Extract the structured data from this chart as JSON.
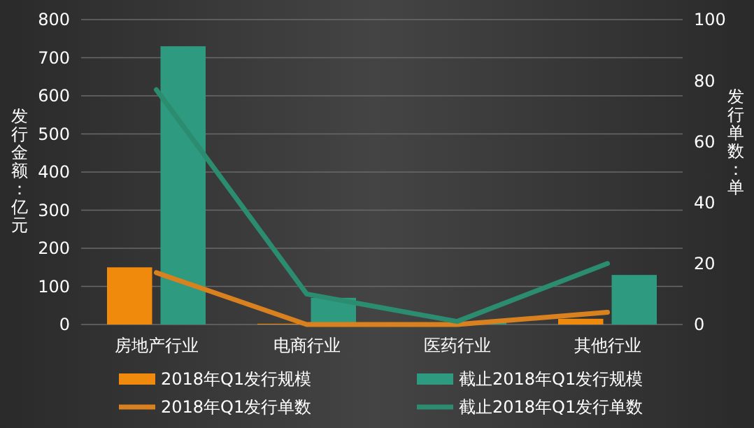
{
  "chart_data": {
    "type": "bar",
    "categories": [
      "房地产行业",
      "电商行业",
      "医药行业",
      "其他行业"
    ],
    "ylabel": "发行金额：亿元",
    "y2label": "发行单数：单",
    "ylim": [
      0,
      800
    ],
    "yticks": [
      0,
      100,
      200,
      300,
      400,
      500,
      600,
      700,
      800
    ],
    "y2lim": [
      0,
      100
    ],
    "y2ticks": [
      0,
      20,
      40,
      60,
      80,
      100
    ],
    "grid": "y",
    "legend": "bottom",
    "series": [
      {
        "name": "2018年Q1发行规模",
        "color": "#f08a0c",
        "values": [
          150,
          2,
          1,
          15
        ]
      },
      {
        "name": "截止2018年Q1发行规模",
        "color": "#2e9a80",
        "values": [
          730,
          70,
          5,
          130
        ]
      },
      {
        "name": "2018年Q1发行单数",
        "type": "line",
        "axis": "y2",
        "color": "#d9811f",
        "values": [
          17,
          0,
          0,
          4
        ]
      },
      {
        "name": "截止2018年Q1发行单数",
        "type": "line",
        "axis": "y2",
        "color": "#2b8c70",
        "values": [
          77,
          10,
          1,
          20
        ]
      }
    ]
  }
}
